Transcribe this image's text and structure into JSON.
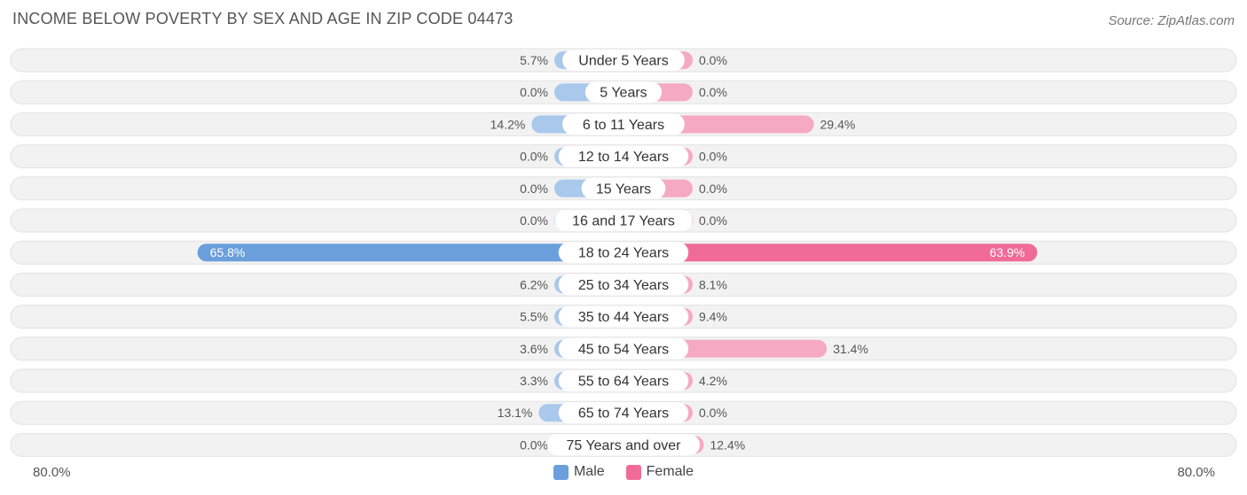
{
  "title": "INCOME BELOW POVERTY BY SEX AND AGE IN ZIP CODE 04473",
  "source": "Source: ZipAtlas.com",
  "colors": {
    "male_light": "#a9c8ec",
    "male_strong": "#6a9fdc",
    "female_light": "#f6a9c2",
    "female_strong": "#f06b97",
    "row_bg": "#f1f1f1"
  },
  "chart_data": {
    "type": "bar",
    "orientation": "horizontal-diverging",
    "categories": [
      "Under 5 Years",
      "5 Years",
      "6 to 11 Years",
      "12 to 14 Years",
      "15 Years",
      "16 and 17 Years",
      "18 to 24 Years",
      "25 to 34 Years",
      "35 to 44 Years",
      "45 to 54 Years",
      "55 to 64 Years",
      "65 to 74 Years",
      "75 Years and over"
    ],
    "series": [
      {
        "name": "Male",
        "values": [
          5.7,
          0.0,
          14.2,
          0.0,
          0.0,
          0.0,
          65.8,
          6.2,
          5.5,
          3.6,
          3.3,
          13.1,
          0.0
        ],
        "labels": [
          "5.7%",
          "0.0%",
          "14.2%",
          "0.0%",
          "0.0%",
          "0.0%",
          "65.8%",
          "6.2%",
          "5.5%",
          "3.6%",
          "3.3%",
          "13.1%",
          "0.0%"
        ]
      },
      {
        "name": "Female",
        "values": [
          0.0,
          0.0,
          29.4,
          0.0,
          0.0,
          0.0,
          63.9,
          8.1,
          9.4,
          31.4,
          4.2,
          0.0,
          12.4
        ],
        "labels": [
          "0.0%",
          "0.0%",
          "29.4%",
          "0.0%",
          "0.0%",
          "0.0%",
          "63.9%",
          "8.1%",
          "9.4%",
          "31.4%",
          "4.2%",
          "0.0%",
          "12.4%"
        ]
      }
    ],
    "xlim": [
      -80,
      80
    ],
    "axis_left_label": "80.0%",
    "axis_right_label": "80.0%",
    "legend": [
      "Male",
      "Female"
    ],
    "legend_position": "bottom-center"
  }
}
